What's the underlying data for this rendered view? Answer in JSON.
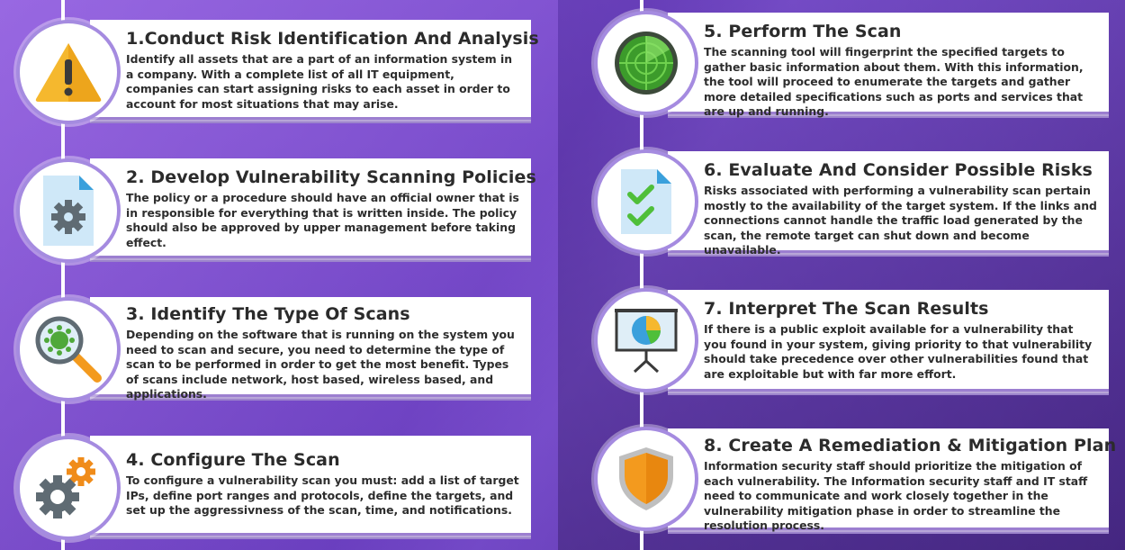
{
  "steps": [
    {
      "title": "1.Conduct Risk Identification And Analysis",
      "text": "Identify all assets that are a part of an information system in a company. With a complete list of all IT equipment, companies can start assigning risks to each asset in order to account for most situations that may arise.",
      "icon": "warning-icon"
    },
    {
      "title": "2. Develop Vulnerability Scanning Policies",
      "text": "The policy or a procedure should have an official owner that is in responsible for everything that is written inside. The policy should also be approved by upper management before taking effect.",
      "icon": "document-gear-icon"
    },
    {
      "title": "3. Identify The Type Of Scans",
      "text": "Depending on the software that is running on the system you need to scan and secure, you need to determine the type of scan to be performed in order to get the most benefit. Types of scans include network, host based, wireless based, and applications.",
      "icon": "magnifier-virus-icon"
    },
    {
      "title": "4. Configure The Scan",
      "text": "To configure a vulnerability scan you must: add a list of target IPs, define port ranges and protocols, define the targets, and set up the aggressivness of the scan, time, and notifications.",
      "icon": "gears-icon"
    },
    {
      "title": "5. Perform The Scan",
      "text": "The scanning tool will fingerprint the specified targets to gather basic information about them. With this information, the tool will proceed to enumerate the targets and gather more detailed specifications such as ports and services that are up and running.",
      "icon": "radar-icon"
    },
    {
      "title": "6. Evaluate And Consider Possible Risks",
      "text": "Risks associated with performing a vulnerability scan pertain mostly to the availability of the target system. If the links and connections cannot handle the traffic load generated by the scan, the remote target can shut down and become unavailable.",
      "icon": "checklist-icon"
    },
    {
      "title": "7. Interpret The Scan Results",
      "text": "If there is a public exploit available for a vulnerability that you found in your system, giving priority to that vulnerability should take precedence over other vulnerabilities found that are exploitable but with far more effort.",
      "icon": "presentation-chart-icon"
    },
    {
      "title": "8. Create A Remediation & Mitigation Plan",
      "text": "Information security staff should prioritize the mitigation of each vulnerability. The Information security staff and IT staff need to communicate and work closely together in the vulnerability mitigation phase in order to streamline the resolution process.",
      "icon": "shield-icon"
    }
  ],
  "colors": {
    "accent": "#a58be0",
    "warning": "#f5b82e",
    "document": "#3aa0dc",
    "radar": "#3c9b2b",
    "check": "#4fbf3a",
    "shield": "#f39a1e",
    "gear_orange": "#f08c1a",
    "gear_gray": "#5f6b73"
  }
}
